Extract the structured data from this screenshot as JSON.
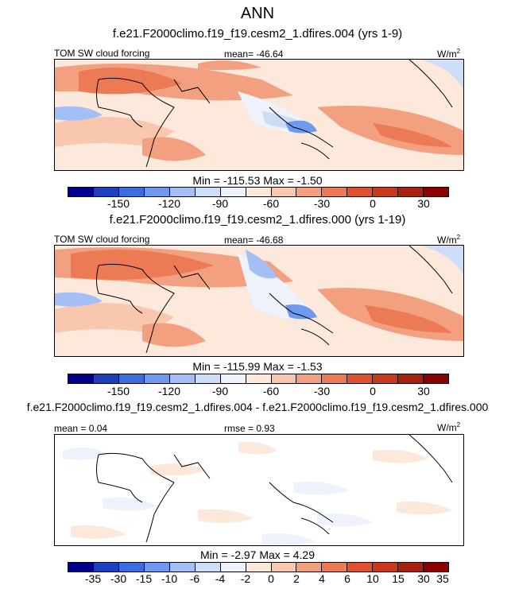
{
  "title": "ANN",
  "panels": [
    {
      "case": "f.e21.F2000climo.f19_f19.cesm2_1.dfires.004 (yrs 1-9)",
      "left_label": "TOM SW cloud forcing",
      "center_label": "mean= -46.64",
      "units": "W/m",
      "units_sup": "2",
      "minmax": "Min = -115.53 Max =  -1.50",
      "ticks": [
        "-150",
        "-120",
        "-90",
        "-60",
        "-30",
        "0",
        "30"
      ]
    },
    {
      "case": "f.e21.F2000climo.f19_f19.cesm2_1.dfires.000 (yrs 1-19)",
      "left_label": "TOM SW cloud forcing",
      "center_label": "mean= -46.68",
      "units": "W/m",
      "units_sup": "2",
      "minmax": "Min = -115.99 Max =  -1.53",
      "ticks": [
        "-150",
        "-120",
        "-90",
        "-60",
        "-30",
        "0",
        "30"
      ]
    },
    {
      "case": "f.e21.F2000climo.f19_f19.cesm2_1.dfires.004 - f.e21.F2000climo.f19_f19.cesm2_1.dfires.000",
      "left_label": "mean =   0.04",
      "center_label": "rmse =   0.93",
      "units": "W/m",
      "units_sup": "2",
      "minmax": "Min =  -2.97 Max =   4.29",
      "ticks": [
        "-35",
        "-30",
        "-15",
        "-10",
        "-6",
        "-4",
        "-2",
        "0",
        "2",
        "4",
        "6",
        "10",
        "15",
        "30",
        "35"
      ]
    }
  ],
  "colors": {
    "scale": [
      "#00008b",
      "#1e3fbf",
      "#3a6ee0",
      "#6f98ef",
      "#a3bff6",
      "#cddcf7",
      "#eef2fb",
      "#fde8dc",
      "#f9c7ad",
      "#f3a080",
      "#ec7a55",
      "#e0522f",
      "#c8381c",
      "#a8210f",
      "#8b0000"
    ],
    "land": "#000000"
  }
}
